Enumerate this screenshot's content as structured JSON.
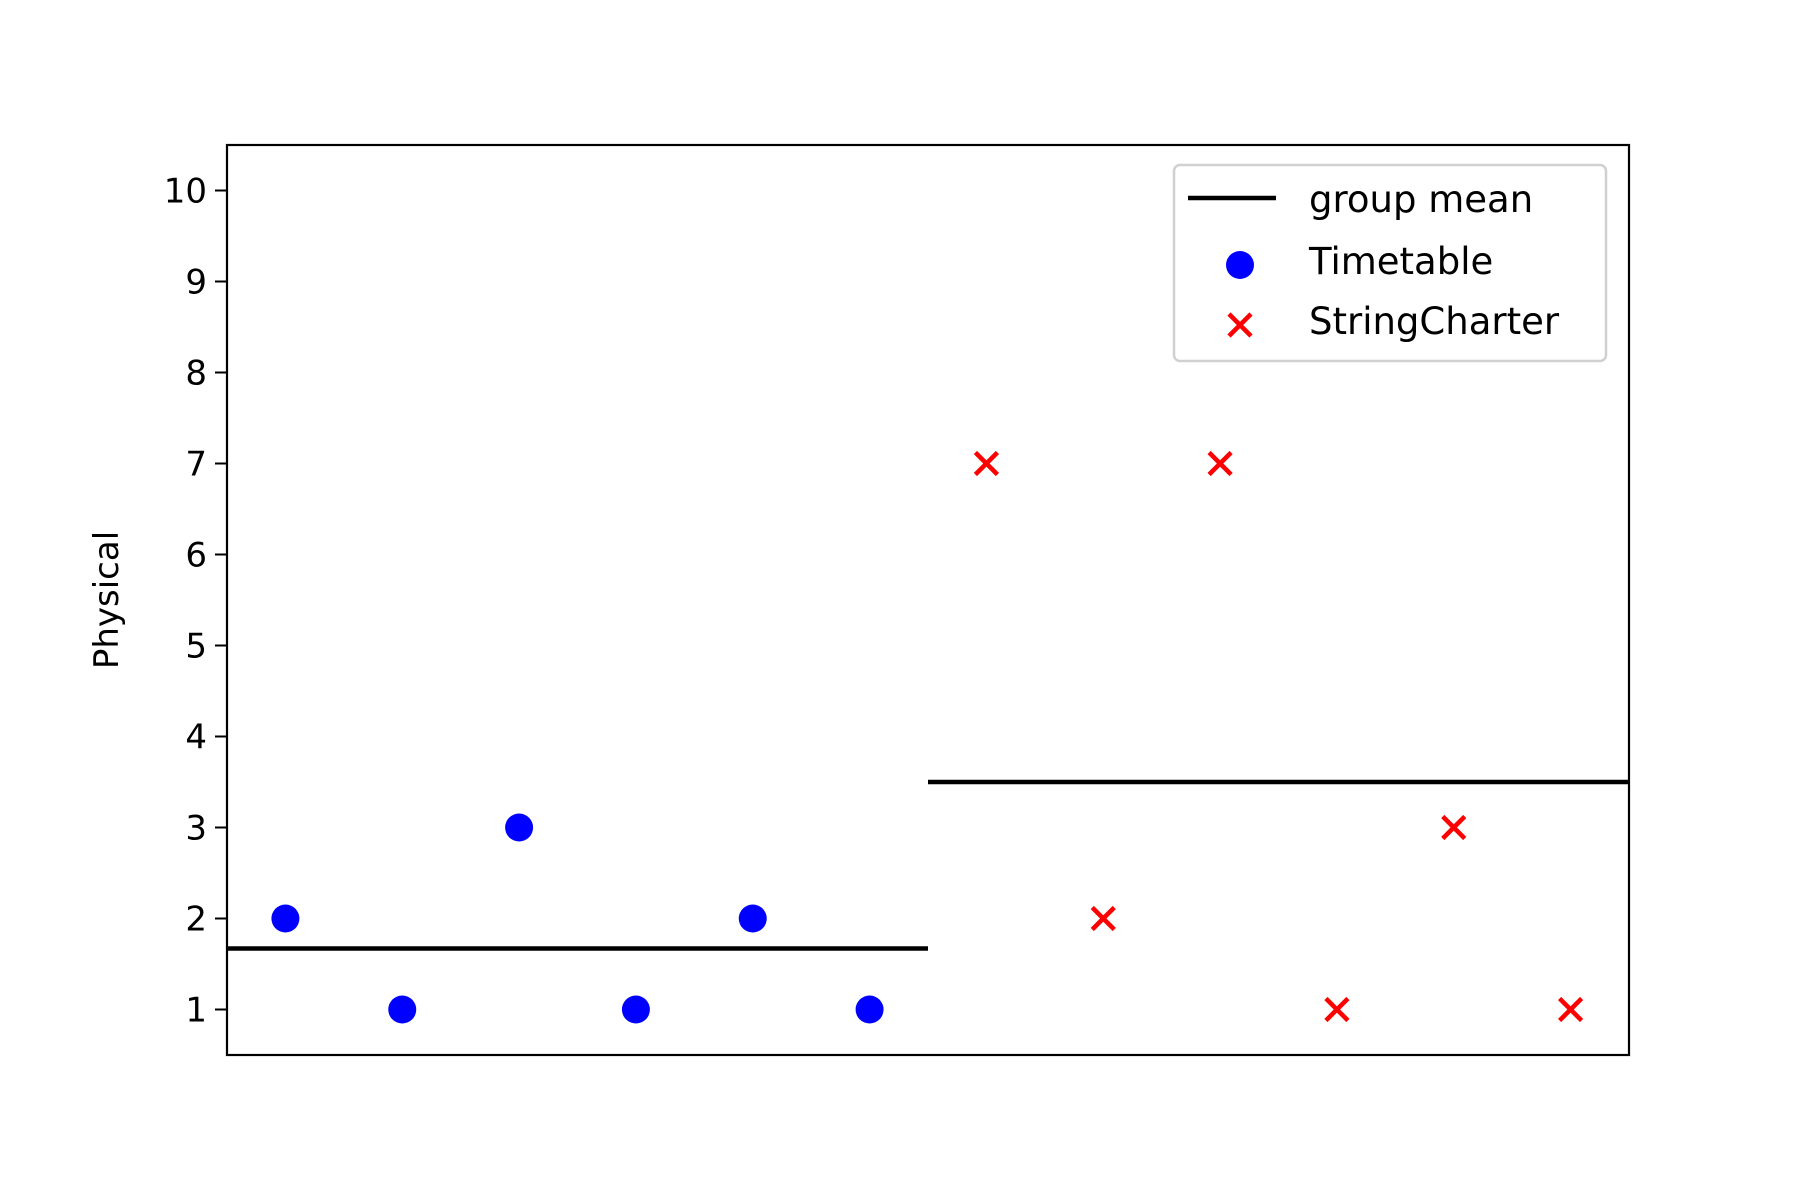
{
  "chart_data": {
    "type": "scatter",
    "title": "",
    "xlabel": "",
    "ylabel": "Physical",
    "ylim": [
      0.5,
      10.5
    ],
    "xlim": [
      0.5,
      12.5
    ],
    "yticks": [
      1,
      2,
      3,
      4,
      5,
      6,
      7,
      8,
      9,
      10
    ],
    "grid": false,
    "legend": {
      "position": "top-right",
      "entries": [
        "group mean",
        "Timetable",
        "StringCharter"
      ]
    },
    "series": [
      {
        "name": "Timetable",
        "marker": "circle",
        "color": "#0000ff",
        "x": [
          1,
          2,
          3,
          4,
          5,
          6
        ],
        "y": [
          2,
          1,
          3,
          1,
          2,
          1
        ]
      },
      {
        "name": "StringCharter",
        "marker": "x",
        "color": "#ff0000",
        "x": [
          7,
          8,
          9,
          10,
          11,
          12
        ],
        "y": [
          7,
          2,
          7,
          1,
          3,
          1
        ]
      }
    ],
    "group_means": [
      {
        "name": "group mean",
        "group": "Timetable",
        "x_range": [
          0.5,
          6.5
        ],
        "value": 1.67,
        "color": "#000000"
      },
      {
        "name": "group mean",
        "group": "StringCharter",
        "x_range": [
          6.5,
          12.5
        ],
        "value": 3.5,
        "color": "#000000"
      }
    ]
  }
}
